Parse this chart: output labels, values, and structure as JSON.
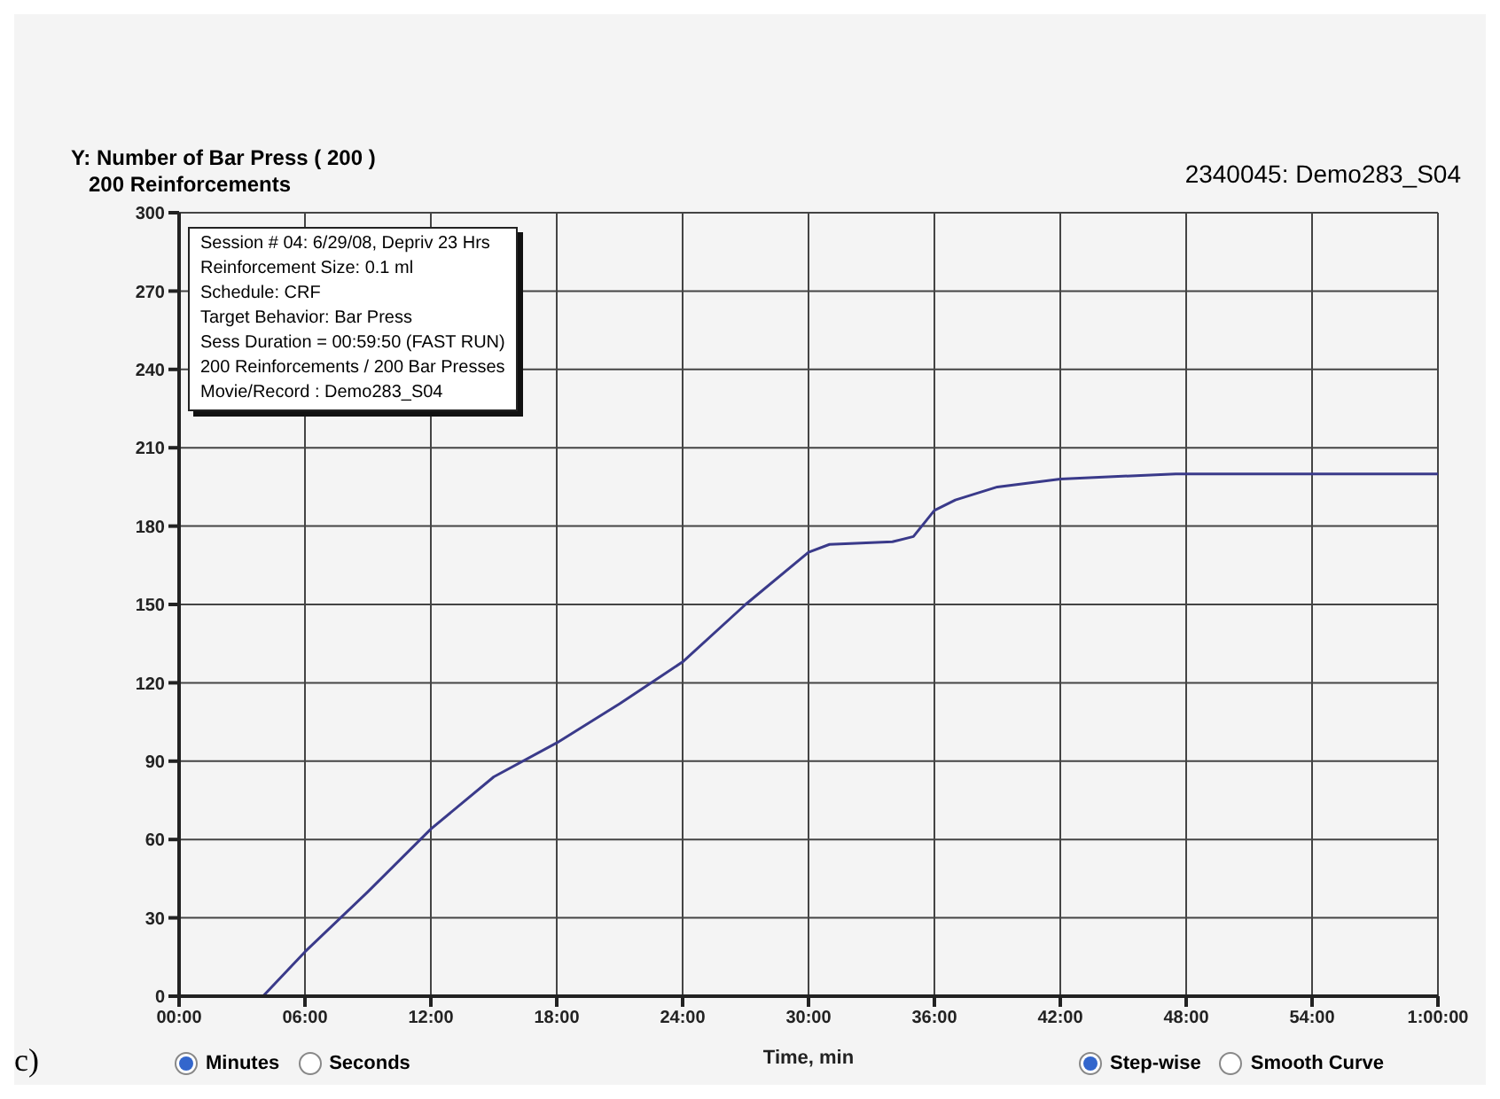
{
  "chart_data": {
    "type": "line",
    "title": "Y: Number of Bar Press ( 200 )",
    "subtitle": "200 Reinforcements",
    "xlabel": "Time, min",
    "annotations": [
      "2340045: Demo283_S04",
      "Session # 04: 6/29/08, Depriv 23 Hrs",
      "Reinforcement Size: 0.1 ml",
      "Schedule: CRF",
      "Target Behavior: Bar Press",
      "Sess Duration = 00:59:50 (FAST RUN)",
      "200 Reinforcements / 200 Bar Presses",
      "Movie/Record : Demo283_S04",
      "Minutes",
      "Seconds",
      "Step-wise",
      "Smooth Curve",
      "c)"
    ],
    "series": [
      {
        "color": "#3a3a8a",
        "x": [
          0,
          4,
          6,
          9,
          12,
          15,
          18,
          21,
          24,
          27,
          30,
          31,
          34,
          35,
          36,
          37,
          39,
          42,
          47.5,
          54,
          60
        ],
        "values": [
          0,
          0,
          17,
          40,
          64,
          84,
          97,
          112,
          128,
          150,
          170,
          173,
          174,
          176,
          186,
          190,
          195,
          198,
          200,
          200,
          200
        ]
      }
    ],
    "xlim": [
      0,
      60
    ],
    "xticks": [
      {
        "value": 0,
        "label": "00:00"
      },
      {
        "value": 6,
        "label": "06:00"
      },
      {
        "value": 12,
        "label": "12:00"
      },
      {
        "value": 18,
        "label": "18:00"
      },
      {
        "value": 24,
        "label": "24:00"
      },
      {
        "value": 30,
        "label": "30:00"
      },
      {
        "value": 36,
        "label": "36:00"
      },
      {
        "value": 42,
        "label": "42:00"
      },
      {
        "value": 48,
        "label": "48:00"
      },
      {
        "value": 54,
        "label": "54:00"
      },
      {
        "value": 60,
        "label": "1:00:00"
      }
    ],
    "ylim": [
      0,
      300
    ],
    "yticks": [
      0,
      30,
      60,
      90,
      120,
      150,
      180,
      210,
      240,
      270,
      300
    ],
    "grid": true,
    "marker": "none",
    "line_style": "solid"
  }
}
